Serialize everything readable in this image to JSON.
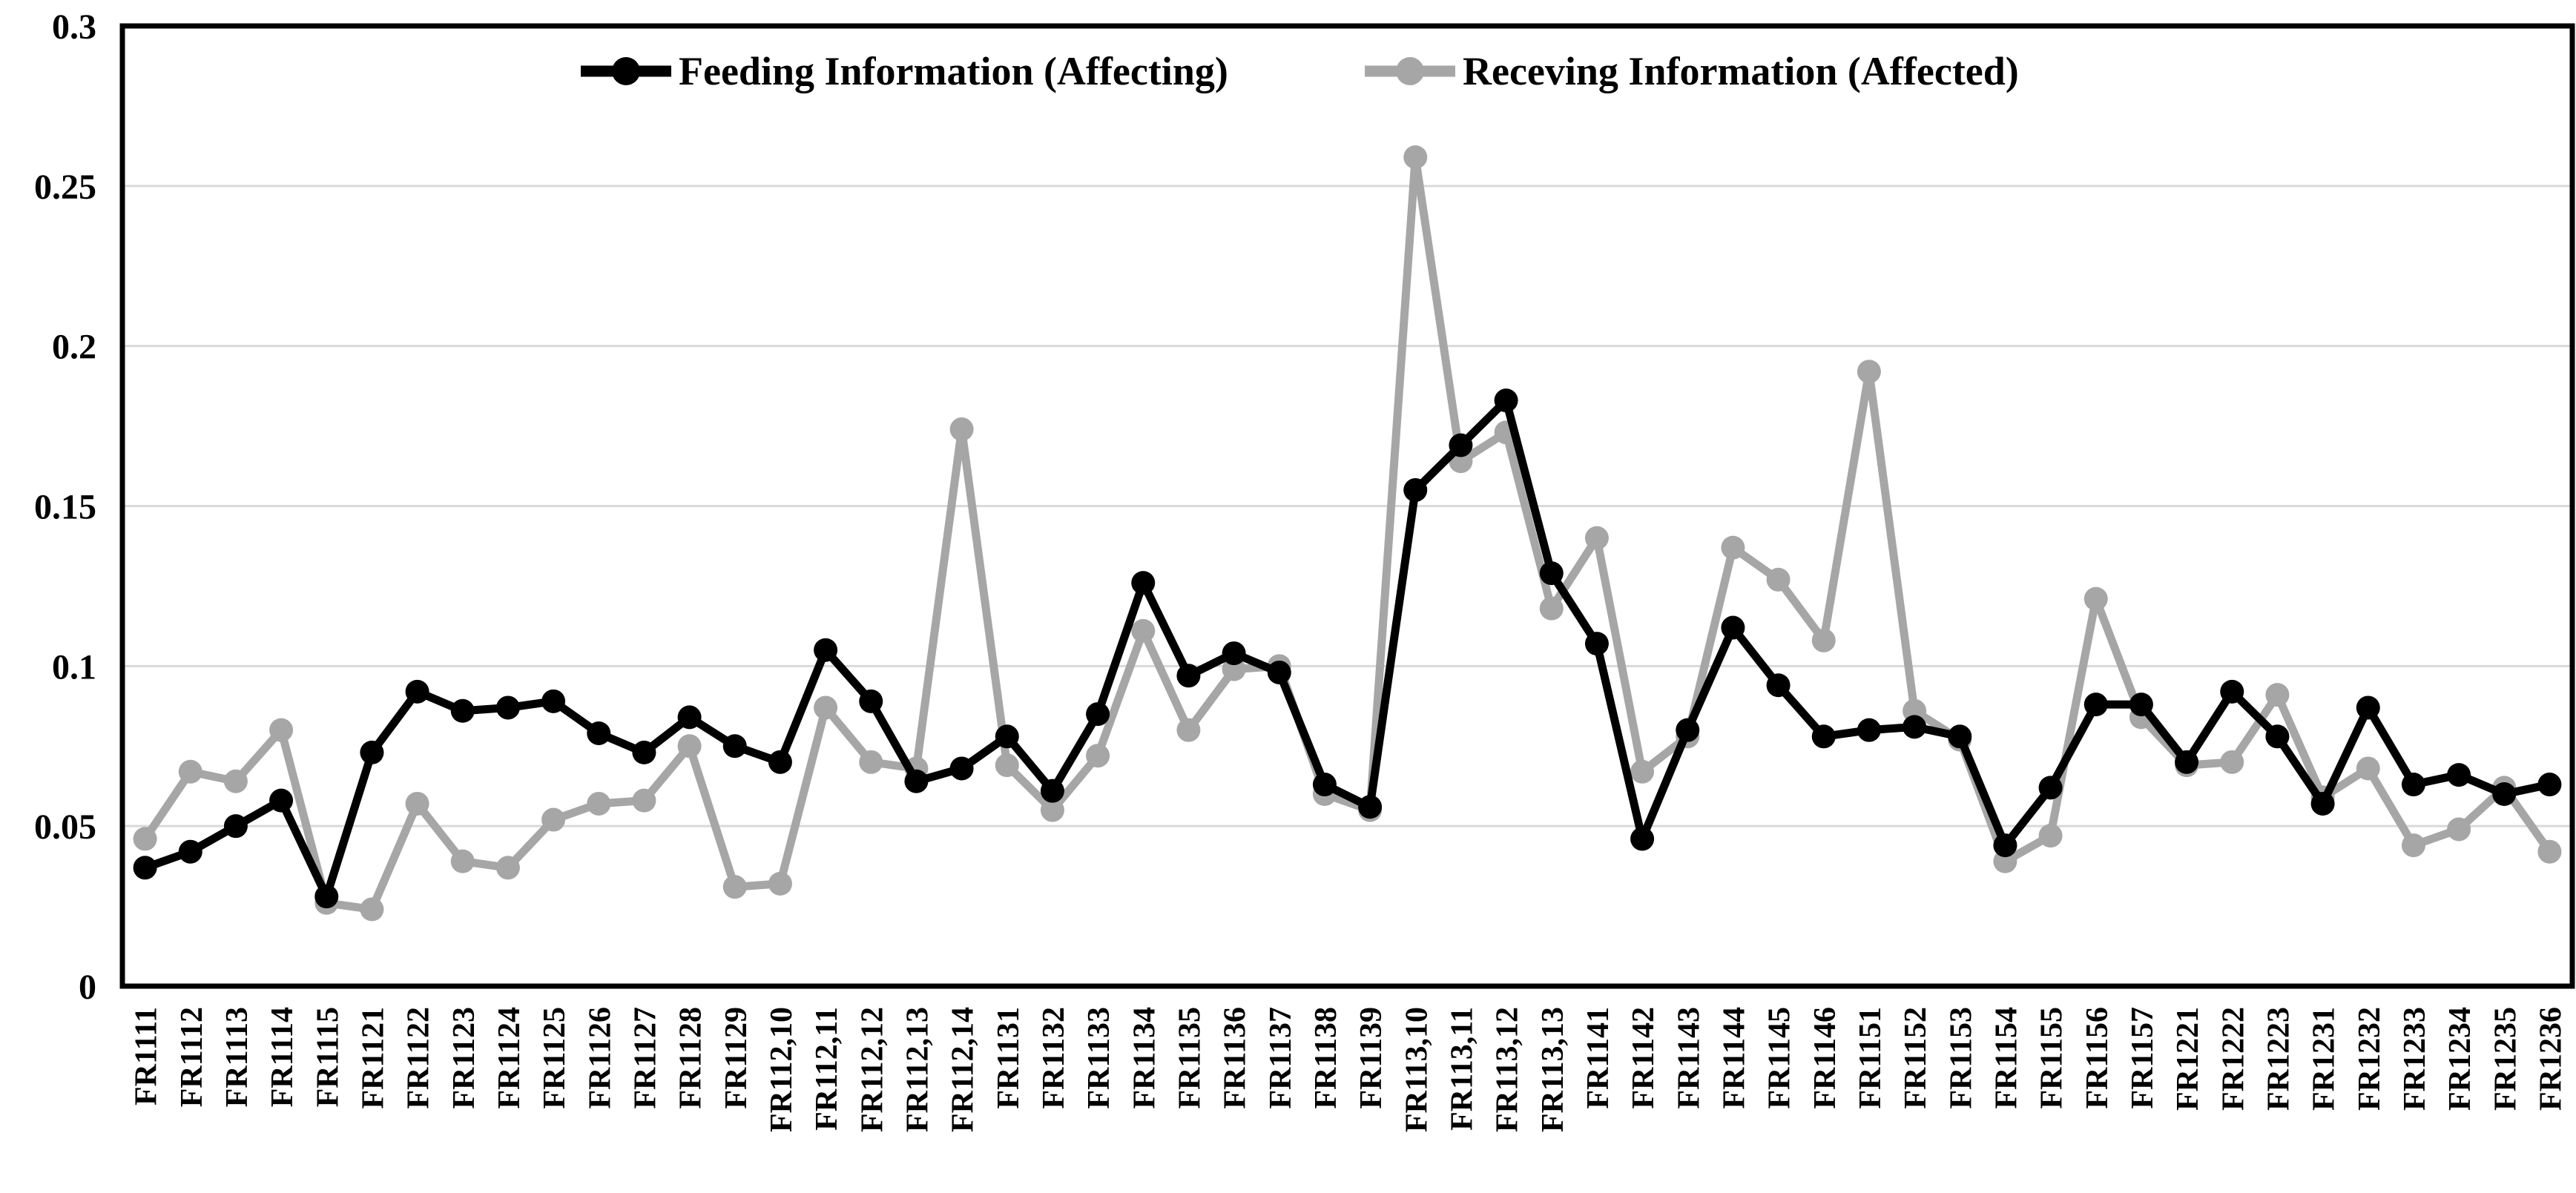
{
  "chart_data": {
    "type": "line",
    "title": "",
    "xlabel": "",
    "ylabel": "",
    "ylim": [
      0,
      0.3
    ],
    "yticks": [
      0,
      0.05,
      0.1,
      0.15,
      0.2,
      0.25,
      0.3
    ],
    "ytick_labels": [
      "0",
      "0.05",
      "0.1",
      "0.15",
      "0.2",
      "0.25",
      "0.3"
    ],
    "grid": true,
    "legend_position": "top-center",
    "gridline_color": "#d9d9d9",
    "border_color": "#000000",
    "categories": [
      "FR1111",
      "FR1112",
      "FR1113",
      "FR1114",
      "FR1115",
      "FR1121",
      "FR1122",
      "FR1123",
      "FR1124",
      "FR1125",
      "FR1126",
      "FR1127",
      "FR1128",
      "FR1129",
      "FR112,10",
      "FR112,11",
      "FR112,12",
      "FR112,13",
      "FR112,14",
      "FR1131",
      "FR1132",
      "FR1133",
      "FR1134",
      "FR1135",
      "FR1136",
      "FR1137",
      "FR1138",
      "FR1139",
      "FR113,10",
      "FR113,11",
      "FR113,12",
      "FR113,13",
      "FR1141",
      "FR1142",
      "FR1143",
      "FR1144",
      "FR1145",
      "FR1146",
      "FR1151",
      "FR1152",
      "FR1153",
      "FR1154",
      "FR1155",
      "FR1156",
      "FR1157",
      "FR1221",
      "FR1222",
      "FR1223",
      "FR1231",
      "FR1232",
      "FR1233",
      "FR1234",
      "FR1235",
      "FR1236"
    ],
    "series": [
      {
        "name": "Feeding Information (Affecting)",
        "color": "#000000",
        "marker": "circle",
        "values": [
          0.037,
          0.042,
          0.05,
          0.058,
          0.028,
          0.073,
          0.092,
          0.086,
          0.087,
          0.089,
          0.079,
          0.073,
          0.084,
          0.075,
          0.07,
          0.105,
          0.089,
          0.064,
          0.068,
          0.078,
          0.061,
          0.085,
          0.126,
          0.097,
          0.104,
          0.098,
          0.063,
          0.056,
          0.155,
          0.169,
          0.183,
          0.129,
          0.107,
          0.046,
          0.08,
          0.112,
          0.094,
          0.078,
          0.08,
          0.081,
          0.078,
          0.044,
          0.062,
          0.088,
          0.088,
          0.07,
          0.092,
          0.078,
          0.057,
          0.087,
          0.063,
          0.066,
          0.06,
          0.063
        ]
      },
      {
        "name": "Receving Information (Affected)",
        "color": "#a6a6a6",
        "marker": "circle",
        "values": [
          0.046,
          0.067,
          0.064,
          0.08,
          0.026,
          0.024,
          0.057,
          0.039,
          0.037,
          0.052,
          0.057,
          0.058,
          0.075,
          0.031,
          0.032,
          0.087,
          0.07,
          0.068,
          0.174,
          0.069,
          0.055,
          0.072,
          0.111,
          0.08,
          0.099,
          0.1,
          0.06,
          0.055,
          0.259,
          0.164,
          0.173,
          0.118,
          0.14,
          0.067,
          0.078,
          0.137,
          0.127,
          0.108,
          0.192,
          0.086,
          0.077,
          0.039,
          0.047,
          0.121,
          0.084,
          0.069,
          0.07,
          0.091,
          0.059,
          0.068,
          0.044,
          0.049,
          0.062,
          0.042
        ]
      }
    ]
  }
}
